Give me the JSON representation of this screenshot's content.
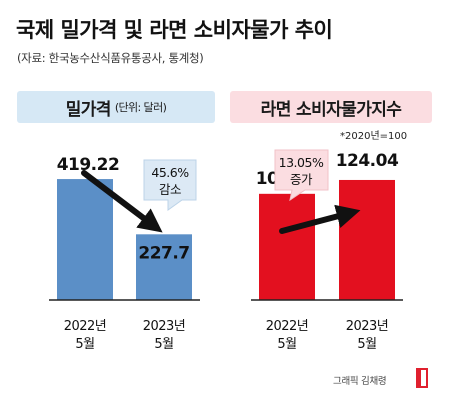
{
  "header": {
    "title": "국제 밀가격 및 라면 소비자물가 추이",
    "source": "(자료: 한국농수산식품유통공사, 통계청)"
  },
  "panels": {
    "left": {
      "title": "밀가격",
      "unit": "(단위: 달러)"
    },
    "right": {
      "title": "라면 소비자물가지수",
      "note": "*2020년=100"
    }
  },
  "chart_data": [
    {
      "type": "bar",
      "title": "밀가격",
      "unit": "(단위: 달러)",
      "categories": [
        "2022년\n5월",
        "2023년\n5월"
      ],
      "values": [
        419.22,
        227.7
      ],
      "value_labels": [
        "419.22",
        "227.7"
      ],
      "change_label": [
        "45.6%",
        "감소"
      ],
      "color": "#5b8fc7",
      "ylim": [
        0,
        520
      ]
    },
    {
      "type": "bar",
      "title": "라면 소비자물가지수",
      "note": "*2020년=100",
      "categories": [
        "2022년\n5월",
        "2023년\n5월"
      ],
      "values": [
        109.72,
        124.04
      ],
      "value_labels": [
        "109.72",
        "124.04"
      ],
      "change_label": [
        "13.05%",
        "증가"
      ],
      "color": "#e3101f",
      "ylim": [
        0,
        155
      ]
    }
  ],
  "credit": "그래픽 김채령"
}
